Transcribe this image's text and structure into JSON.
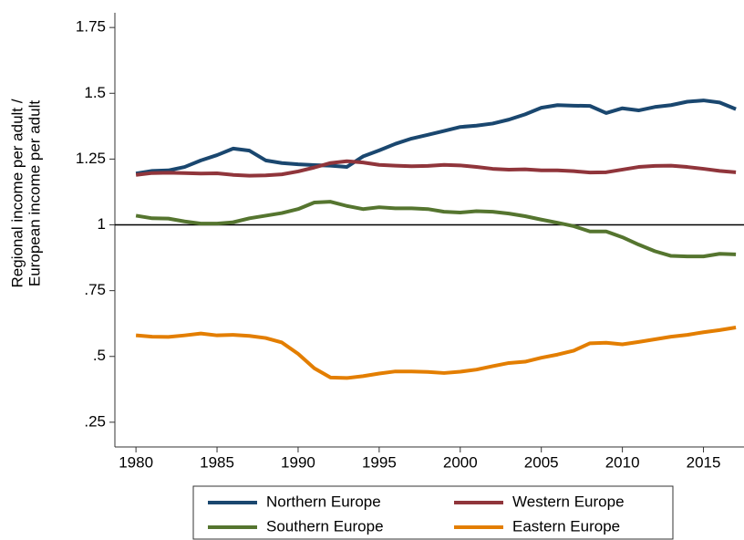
{
  "chart_data": {
    "type": "line",
    "y_label": [
      "Regional income per adult /",
      "European income per adult"
    ],
    "x": [
      1980,
      1981,
      1982,
      1983,
      1984,
      1985,
      1986,
      1987,
      1988,
      1989,
      1990,
      1991,
      1992,
      1993,
      1994,
      1995,
      1996,
      1997,
      1998,
      1999,
      2000,
      2001,
      2002,
      2003,
      2004,
      2005,
      2006,
      2007,
      2008,
      2009,
      2010,
      2011,
      2012,
      2013,
      2014,
      2015,
      2016,
      2017
    ],
    "xlim": [
      1978.7,
      2017.5
    ],
    "xticks": [
      1980,
      1985,
      1990,
      1995,
      2000,
      2005,
      2010,
      2015
    ],
    "ylim": [
      0.156,
      1.806
    ],
    "yticks": [
      {
        "value": 0.25,
        "label": ".25"
      },
      {
        "value": 0.5,
        "label": ".5"
      },
      {
        "value": 0.75,
        "label": ".75"
      },
      1,
      1.25,
      1.5,
      1.75
    ],
    "yline": 1,
    "grid": false,
    "legend": "bottom",
    "series": [
      {
        "name": "Northern Europe",
        "color": "#1a476f",
        "values": [
          1.195,
          1.205,
          1.207,
          1.22,
          1.245,
          1.265,
          1.29,
          1.282,
          1.245,
          1.235,
          1.23,
          1.227,
          1.225,
          1.22,
          1.26,
          1.283,
          1.308,
          1.328,
          1.342,
          1.357,
          1.372,
          1.377,
          1.385,
          1.4,
          1.42,
          1.445,
          1.455,
          1.453,
          1.452,
          1.425,
          1.443,
          1.435,
          1.448,
          1.455,
          1.468,
          1.473,
          1.465,
          1.44
        ]
      },
      {
        "name": "Western Europe",
        "color": "#90353b",
        "values": [
          1.19,
          1.197,
          1.198,
          1.197,
          1.195,
          1.196,
          1.19,
          1.187,
          1.188,
          1.192,
          1.203,
          1.218,
          1.235,
          1.242,
          1.237,
          1.228,
          1.225,
          1.223,
          1.224,
          1.228,
          1.226,
          1.22,
          1.213,
          1.21,
          1.211,
          1.207,
          1.207,
          1.204,
          1.199,
          1.2,
          1.21,
          1.22,
          1.224,
          1.225,
          1.22,
          1.213,
          1.205,
          1.2
        ]
      },
      {
        "name": "Southern Europe",
        "color": "#55752f",
        "values": [
          1.035,
          1.025,
          1.024,
          1.013,
          1.005,
          1.005,
          1.01,
          1.025,
          1.035,
          1.045,
          1.06,
          1.085,
          1.088,
          1.072,
          1.06,
          1.067,
          1.063,
          1.063,
          1.06,
          1.05,
          1.047,
          1.052,
          1.05,
          1.043,
          1.033,
          1.02,
          1.008,
          0.995,
          0.975,
          0.975,
          0.953,
          0.925,
          0.9,
          0.882,
          0.88,
          0.88,
          0.89,
          0.888
        ]
      },
      {
        "name": "Eastern Europe",
        "color": "#e37e00",
        "values": [
          0.58,
          0.575,
          0.574,
          0.58,
          0.587,
          0.58,
          0.582,
          0.578,
          0.57,
          0.553,
          0.51,
          0.455,
          0.42,
          0.418,
          0.425,
          0.435,
          0.443,
          0.443,
          0.441,
          0.437,
          0.442,
          0.45,
          0.463,
          0.475,
          0.48,
          0.495,
          0.507,
          0.522,
          0.55,
          0.552,
          0.546,
          0.555,
          0.565,
          0.575,
          0.582,
          0.592,
          0.6,
          0.61
        ]
      }
    ]
  }
}
